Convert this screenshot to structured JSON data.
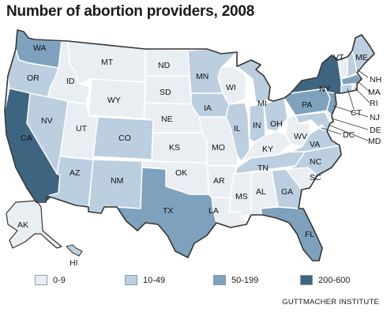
{
  "title": "Number of abortion providers, 2008",
  "source": "GUTTMACHER INSTITUTE",
  "colors": {
    "c0": "#e9eef3",
    "c1": "#bccfe0",
    "c2": "#7ea2bd",
    "c3": "#3e6580",
    "outline": "#333333"
  },
  "legend": [
    {
      "label": "0-9",
      "class": "c0"
    },
    {
      "label": "10-49",
      "class": "c1"
    },
    {
      "label": "50-199",
      "class": "c2"
    },
    {
      "label": "200-600",
      "class": "c3"
    }
  ],
  "states": {
    "WA": {
      "label": "WA",
      "class": "c2"
    },
    "OR": {
      "label": "OR",
      "class": "c1"
    },
    "CA": {
      "label": "CA",
      "class": "c3"
    },
    "ID": {
      "label": "ID",
      "class": "c0"
    },
    "NV": {
      "label": "NV",
      "class": "c1"
    },
    "MT": {
      "label": "MT",
      "class": "c0"
    },
    "WY": {
      "label": "WY",
      "class": "c0"
    },
    "UT": {
      "label": "UT",
      "class": "c0"
    },
    "CO": {
      "label": "CO",
      "class": "c1"
    },
    "AZ": {
      "label": "AZ",
      "class": "c1"
    },
    "NM": {
      "label": "NM",
      "class": "c1"
    },
    "ND": {
      "label": "ND",
      "class": "c0"
    },
    "SD": {
      "label": "SD",
      "class": "c0"
    },
    "NE": {
      "label": "NE",
      "class": "c0"
    },
    "KS": {
      "label": "KS",
      "class": "c0"
    },
    "OK": {
      "label": "OK",
      "class": "c0"
    },
    "TX": {
      "label": "TX",
      "class": "c2"
    },
    "MN": {
      "label": "MN",
      "class": "c1"
    },
    "IA": {
      "label": "IA",
      "class": "c1"
    },
    "MO": {
      "label": "MO",
      "class": "c0"
    },
    "AR": {
      "label": "AR",
      "class": "c0"
    },
    "LA": {
      "label": "LA",
      "class": "c0"
    },
    "WI": {
      "label": "WI",
      "class": "c0"
    },
    "IL": {
      "label": "IL",
      "class": "c1"
    },
    "MI": {
      "label": "MI",
      "class": "c1"
    },
    "IN": {
      "label": "IN",
      "class": "c1"
    },
    "OH": {
      "label": "OH",
      "class": "c1"
    },
    "KY": {
      "label": "KY",
      "class": "c0"
    },
    "TN": {
      "label": "TN",
      "class": "c1"
    },
    "MS": {
      "label": "MS",
      "class": "c0"
    },
    "AL": {
      "label": "AL",
      "class": "c0"
    },
    "GA": {
      "label": "GA",
      "class": "c1"
    },
    "FL": {
      "label": "FL",
      "class": "c2"
    },
    "SC": {
      "label": "SC",
      "class": "c0"
    },
    "NC": {
      "label": "NC",
      "class": "c1"
    },
    "VA": {
      "label": "VA",
      "class": "c1"
    },
    "WV": {
      "label": "WV",
      "class": "c0"
    },
    "PA": {
      "label": "PA",
      "class": "c2"
    },
    "NY": {
      "label": "NY",
      "class": "c3"
    },
    "VT": {
      "label": "VT",
      "class": "c0"
    },
    "NH": {
      "label": "NH",
      "class": "c1"
    },
    "ME": {
      "label": "ME",
      "class": "c1"
    },
    "MA": {
      "label": "MA",
      "class": "c2"
    },
    "CT": {
      "label": "CT",
      "class": "c1"
    },
    "RI": {
      "label": "RI",
      "class": "c0"
    },
    "NJ": {
      "label": "NJ",
      "class": "c2"
    },
    "DE": {
      "label": "DE",
      "class": "c0"
    },
    "MD": {
      "label": "MD",
      "class": "c1"
    },
    "DC": {
      "label": "DC",
      "class": "c0"
    },
    "AK": {
      "label": "AK",
      "class": "c0"
    },
    "HI": {
      "label": "HI",
      "class": "c1"
    }
  }
}
